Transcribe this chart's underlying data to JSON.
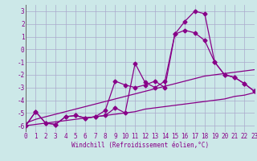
{
  "xlabel": "Windchill (Refroidissement éolien,°C)",
  "xlim": [
    0,
    23
  ],
  "ylim": [
    -6.5,
    3.5
  ],
  "yticks": [
    3,
    2,
    1,
    0,
    -1,
    -2,
    -3,
    -4,
    -5,
    -6
  ],
  "xticks": [
    0,
    1,
    2,
    3,
    4,
    5,
    6,
    7,
    8,
    9,
    10,
    11,
    12,
    13,
    14,
    15,
    16,
    17,
    18,
    19,
    20,
    21,
    22,
    23
  ],
  "bg_color": "#cce8e8",
  "grid_color": "#aaaacc",
  "line_color": "#880088",
  "line_width": 0.9,
  "marker": "D",
  "marker_size": 2.5,
  "hours": [
    0,
    1,
    2,
    3,
    4,
    5,
    6,
    7,
    8,
    9,
    10,
    11,
    12,
    13,
    14,
    15,
    16,
    17,
    18,
    19,
    20,
    21,
    22,
    23
  ],
  "main_line": [
    -6.0,
    -4.9,
    -5.8,
    -5.9,
    -5.3,
    -5.2,
    -5.4,
    -5.3,
    -5.2,
    -4.6,
    -5.0,
    -1.1,
    -2.6,
    -3.0,
    -2.5,
    1.2,
    1.5,
    1.3,
    0.7,
    -1.0,
    -2.0,
    -2.2,
    -2.7,
    -3.3
  ],
  "second_line": [
    -6.0,
    -4.9,
    -5.8,
    -5.9,
    -5.3,
    -5.2,
    -5.4,
    -5.3,
    -4.8,
    -2.5,
    -2.8,
    -3.0,
    -2.8,
    -2.5,
    -3.0,
    1.2,
    2.2,
    3.0,
    2.8,
    -1.0,
    -2.0,
    -2.2,
    -2.7,
    -3.3
  ],
  "trend_upper": [
    -5.8,
    -5.5,
    -5.3,
    -5.1,
    -4.9,
    -4.7,
    -4.5,
    -4.3,
    -4.1,
    -3.9,
    -3.7,
    -3.5,
    -3.3,
    -3.1,
    -2.9,
    -2.7,
    -2.5,
    -2.3,
    -2.1,
    -2.0,
    -1.9,
    -1.8,
    -1.7,
    -1.6
  ],
  "trend_lower": [
    -6.0,
    -5.9,
    -5.8,
    -5.7,
    -5.6,
    -5.5,
    -5.4,
    -5.3,
    -5.2,
    -5.1,
    -5.0,
    -4.9,
    -4.7,
    -4.6,
    -4.5,
    -4.4,
    -4.3,
    -4.2,
    -4.1,
    -4.0,
    -3.9,
    -3.7,
    -3.6,
    -3.4
  ]
}
